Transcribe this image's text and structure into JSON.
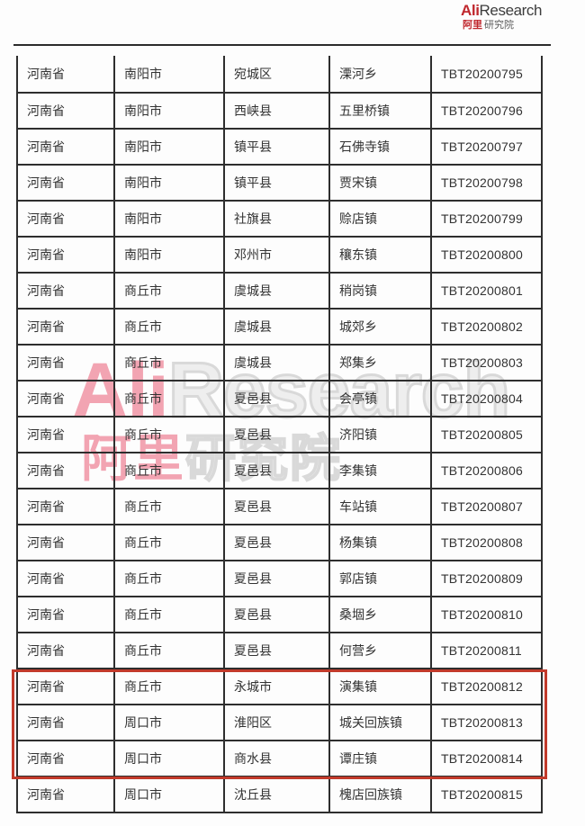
{
  "logo": {
    "ali": "Ali",
    "research": "Research",
    "cn_red": "阿里",
    "cn_gray": "研究院"
  },
  "watermark": {
    "ali": "Ali",
    "research": "Research",
    "cn_red": "阿里",
    "cn_gray": "研究院"
  },
  "colors": {
    "logo_red": "#c0272d",
    "watermark_pink": "#f2a4b2",
    "watermark_gray": "#d9d9d9",
    "highlight_red": "#c23a2b",
    "table_border": "#2e2e2e",
    "text": "#333333"
  },
  "table": {
    "columns": [
      "province",
      "city",
      "county",
      "town",
      "code"
    ],
    "rows": [
      [
        "河南省",
        "南阳市",
        "宛城区",
        "溧河乡",
        "TBT20200795"
      ],
      [
        "河南省",
        "南阳市",
        "西峡县",
        "五里桥镇",
        "TBT20200796"
      ],
      [
        "河南省",
        "南阳市",
        "镇平县",
        "石佛寺镇",
        "TBT20200797"
      ],
      [
        "河南省",
        "南阳市",
        "镇平县",
        "贾宋镇",
        "TBT20200798"
      ],
      [
        "河南省",
        "南阳市",
        "社旗县",
        "赊店镇",
        "TBT20200799"
      ],
      [
        "河南省",
        "南阳市",
        "邓州市",
        "穰东镇",
        "TBT20200800"
      ],
      [
        "河南省",
        "商丘市",
        "虞城县",
        "稍岗镇",
        "TBT20200801"
      ],
      [
        "河南省",
        "商丘市",
        "虞城县",
        "城郊乡",
        "TBT20200802"
      ],
      [
        "河南省",
        "商丘市",
        "虞城县",
        "郑集乡",
        "TBT20200803"
      ],
      [
        "河南省",
        "商丘市",
        "夏邑县",
        "会亭镇",
        "TBT20200804"
      ],
      [
        "河南省",
        "商丘市",
        "夏邑县",
        "济阳镇",
        "TBT20200805"
      ],
      [
        "河南省",
        "商丘市",
        "夏邑县",
        "李集镇",
        "TBT20200806"
      ],
      [
        "河南省",
        "商丘市",
        "夏邑县",
        "车站镇",
        "TBT20200807"
      ],
      [
        "河南省",
        "商丘市",
        "夏邑县",
        "杨集镇",
        "TBT20200808"
      ],
      [
        "河南省",
        "商丘市",
        "夏邑县",
        "郭店镇",
        "TBT20200809"
      ],
      [
        "河南省",
        "商丘市",
        "夏邑县",
        "桑堌乡",
        "TBT20200810"
      ],
      [
        "河南省",
        "商丘市",
        "夏邑县",
        "何营乡",
        "TBT20200811"
      ],
      [
        "河南省",
        "商丘市",
        "永城市",
        "演集镇",
        "TBT20200812"
      ],
      [
        "河南省",
        "周口市",
        "淮阳区",
        "城关回族镇",
        "TBT20200813"
      ],
      [
        "河南省",
        "周口市",
        "商水县",
        "谭庄镇",
        "TBT20200814"
      ],
      [
        "河南省",
        "周口市",
        "沈丘县",
        "槐店回族镇",
        "TBT20200815"
      ]
    ],
    "highlighted_row_indexes": [
      18,
      19,
      20
    ]
  }
}
